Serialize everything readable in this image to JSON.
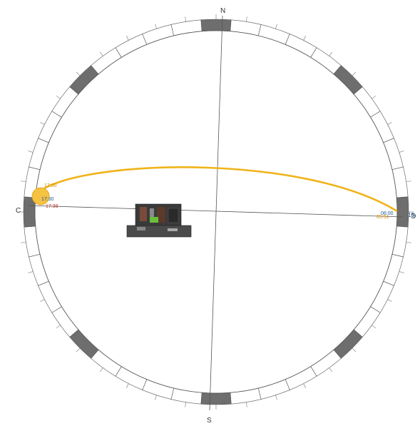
{
  "compass": {
    "north": "N",
    "south": "S",
    "west": "C",
    "east": "Э"
  },
  "ring": {
    "segment_pattern": [
      "dark",
      "light",
      "light",
      "light",
      "light"
    ],
    "colors": {
      "dark": "#6e6e6e",
      "light": "#ffffff",
      "outline": "#555555"
    }
  },
  "sun_path": {
    "color": "#f0b31a",
    "sun_color": "#f5c242",
    "labels": {
      "west_top": "17:00",
      "west_mid": "17:30",
      "west_bottom": "17:39",
      "east_top": "06:00",
      "east_bottom": "05:51",
      "east_hour": "18"
    },
    "label_colors": {
      "top": "#d98a00",
      "mid": "#1a5a9a",
      "bottom": "#c0392b",
      "east_top": "#1a5a9a",
      "east_bottom": "#d98a00"
    }
  },
  "building": {
    "name": "building-model"
  }
}
